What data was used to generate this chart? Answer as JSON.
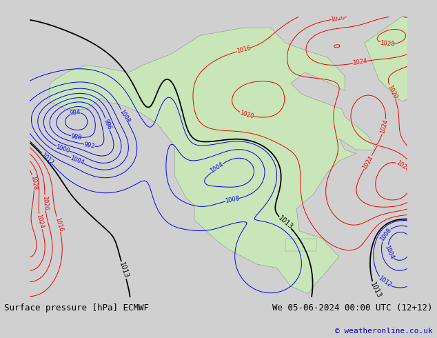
{
  "title_left": "Surface pressure [hPa] ECMWF",
  "title_right": "We 05-06-2024 00:00 UTC (12+12)",
  "copyright": "© weatheronline.co.uk",
  "background_color": "#d0d0d0",
  "land_color": "#c8e6b8",
  "ocean_color": "#d0d0d0",
  "blue_isobar_color": "#0000ee",
  "red_isobar_color": "#ee0000",
  "black_isobar_color": "#000000",
  "label_font_size": 6,
  "title_font_size": 9,
  "copyright_font_size": 8,
  "figsize": [
    6.34,
    4.9
  ],
  "dpi": 100,
  "xlim": [
    -175,
    -42
  ],
  "ylim": [
    7,
    83
  ],
  "blue_levels": [
    984,
    988,
    992,
    996,
    1000,
    1004,
    1008,
    1012
  ],
  "black_levels": [
    1013
  ],
  "red_levels": [
    1016,
    1020,
    1024,
    1028
  ]
}
